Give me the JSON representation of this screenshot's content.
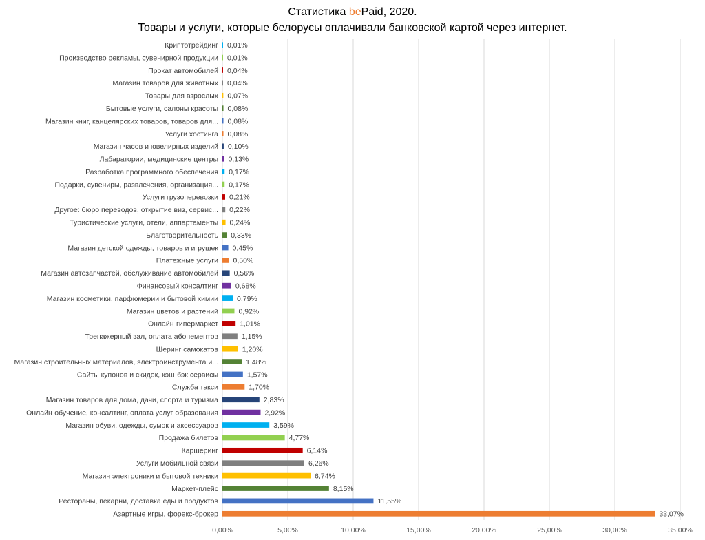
{
  "title": {
    "line1_prefix": "Статистика ",
    "line1_brand_be": "be",
    "line1_brand_rest": "Paid",
    "line1_suffix": ", 2020.",
    "line2": "Товары и услуги, которые белорусы оплачивали банковской картой через интернет."
  },
  "colors": {
    "palette": [
      "#ED7D31",
      "#4472C4",
      "#548235",
      "#FFC000",
      "#7F7F7F",
      "#C00000",
      "#92D050",
      "#00B0F0",
      "#7030A0",
      "#264478"
    ],
    "brand_accent": "#ED7D31"
  },
  "chart_data": {
    "type": "bar",
    "orientation": "horizontal",
    "xlim": [
      0,
      35
    ],
    "x_ticks": [
      "0,00%",
      "5,00%",
      "10,00%",
      "15,00%",
      "20,00%",
      "25,00%",
      "30,00%",
      "35,00%"
    ],
    "grid": "vertical",
    "legend": "none",
    "categories": [
      "Азартные игры, форекс-брокер",
      "Рестораны, пекарни, доставка еды и продуктов",
      "Маркет-плейс",
      "Магазин электроники и бытовой техники",
      "Услуги мобильной связи",
      "Каршеринг",
      "Продажа билетов",
      "Магазин обуви, одежды, сумок и аксессуаров",
      "Онлайн-обучение, консалтинг, оплата услуг образования",
      "Магазин товаров для дома, дачи, спорта и туризма",
      "Служба такси",
      "Сайты купонов и скидок, кэш-бэк сервисы",
      "Магазин строительных материалов, электроинструмента и...",
      "Шеринг самокатов",
      "Тренажерный зал, оплата абонементов",
      "Онлайн-гипермаркет",
      "Магазин цветов и растений",
      "Магазин косметики, парфюмерии и бытовой химии",
      "Финансовый консалтинг",
      "Магазин автозапчастей, обслуживание автомобилей",
      "Платежные услуги",
      "Магазин детской одежды, товаров и игрушек",
      "Благотворительность",
      "Туристические услуги, отели, аппартаменты",
      "Другое: бюро переводов, открытие виз, сервис...",
      "Услуги грузоперевозки",
      "Подарки, сувениры, развлечения, организация...",
      "Разработка программного обеспечения",
      "Лабаратории, медицинские центры",
      "Магазин часов и ювелирных изделий",
      "Услуги хостинга",
      "Магазин книг, канцелярских товаров, товаров для...",
      "Бытовые услуги, салоны красоты",
      "Товары для взрослых",
      "Магазин товаров для животных",
      "Прокат автомобилей",
      "Производство рекламы, сувенирной продукции",
      "Криптотрейдинг"
    ],
    "values": [
      33.07,
      11.55,
      8.15,
      6.74,
      6.26,
      6.14,
      4.77,
      3.59,
      2.92,
      2.83,
      1.7,
      1.57,
      1.48,
      1.2,
      1.15,
      1.01,
      0.92,
      0.79,
      0.68,
      0.56,
      0.5,
      0.45,
      0.33,
      0.24,
      0.22,
      0.21,
      0.17,
      0.17,
      0.13,
      0.1,
      0.08,
      0.08,
      0.08,
      0.07,
      0.04,
      0.04,
      0.01,
      0.01
    ],
    "data_labels": [
      "33,07%",
      "11,55%",
      "8,15%",
      "6,74%",
      "6,26%",
      "6,14%",
      "4,77%",
      "3,59%",
      "2,92%",
      "2,83%",
      "1,70%",
      "1,57%",
      "1,48%",
      "1,20%",
      "1,15%",
      "1,01%",
      "0,92%",
      "0,79%",
      "0,68%",
      "0,56%",
      "0,50%",
      "0,45%",
      "0,33%",
      "0,24%",
      "0,22%",
      "0,21%",
      "0,17%",
      "0,17%",
      "0,13%",
      "0,10%",
      "0,08%",
      "0,08%",
      "0,08%",
      "0,07%",
      "0,04%",
      "0,04%",
      "0,01%",
      "0,01%"
    ]
  }
}
